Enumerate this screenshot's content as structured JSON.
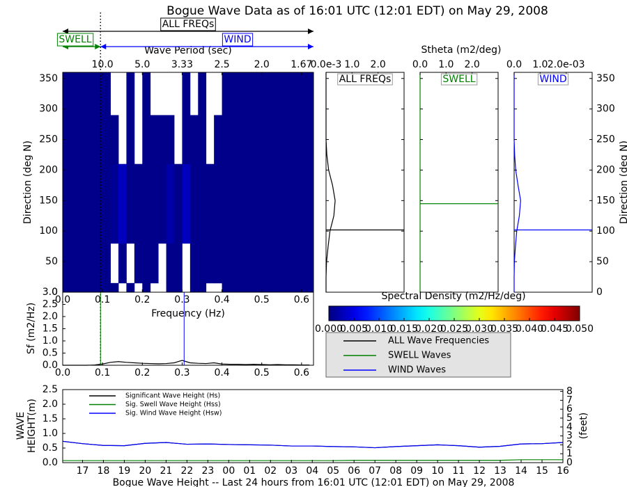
{
  "chart_data": [
    {
      "type": "heatmap",
      "title": "Bogue Wave Data as of 16:01 UTC (12:01 EDT) on May 29, 2008",
      "annotations": {
        "all": "ALL FREQs",
        "swell": "SWELL",
        "wind": "WIND"
      },
      "separation_frequency": 0.095,
      "xlabel": "Frequency (Hz)",
      "ylabel": "Direction (deg N)",
      "top_xlabel": "Wave Period (sec)",
      "xlim": [
        0,
        0.63
      ],
      "xticks": [
        {
          "value": 0,
          "label": "0.0"
        },
        {
          "value": 0.1,
          "label": "0.1"
        },
        {
          "value": 0.2,
          "label": "0.2"
        },
        {
          "value": 0.3,
          "label": "0.3"
        },
        {
          "value": 0.4,
          "label": "0.4"
        },
        {
          "value": 0.5,
          "label": "0.5"
        },
        {
          "value": 0.6,
          "label": "0.6"
        }
      ],
      "top_xticks": [
        {
          "value": 0.1,
          "label": "10.0"
        },
        {
          "value": 0.2,
          "label": "5.0"
        },
        {
          "value": 0.3,
          "label": "3.33"
        },
        {
          "value": 0.4,
          "label": "2.5"
        },
        {
          "value": 0.5,
          "label": "2.0"
        },
        {
          "value": 0.6,
          "label": "1.67"
        }
      ],
      "ylim": [
        0,
        360
      ],
      "yticks": [
        0,
        50,
        100,
        150,
        200,
        250,
        300,
        350
      ],
      "x_edges": [
        0,
        0.02,
        0.04,
        0.06,
        0.08,
        0.1,
        0.12,
        0.14,
        0.16,
        0.18,
        0.2,
        0.22,
        0.24,
        0.26,
        0.28,
        0.3,
        0.32,
        0.34,
        0.36,
        0.38,
        0.4,
        0.42,
        0.44,
        0.46,
        0.48,
        0.5,
        0.52,
        0.54,
        0.56,
        0.58,
        0.6,
        0.63
      ],
      "y_edges": [
        0,
        15,
        80,
        210,
        290,
        360
      ],
      "z": [
        [
          0.0005,
          0.0005,
          0.0005,
          0.0005,
          0.0005,
          0.0005,
          0.0005,
          null,
          0.0005,
          null,
          0.0005,
          null,
          null,
          0.0005,
          0.0005,
          null,
          0.0005,
          0.0005,
          null,
          null,
          0.0005,
          0.0005,
          0.0005,
          0.0005,
          0.0005,
          0.0005,
          0.0005,
          0.0005,
          0.0005,
          0.0005,
          0.0005
        ],
        [
          0.0005,
          0.0005,
          0.0005,
          0.0005,
          0.0005,
          0.0005,
          null,
          0.0005,
          null,
          0.0005,
          0.0005,
          0.0005,
          null,
          0.0005,
          0.0005,
          null,
          0.0005,
          0.0005,
          0.0005,
          0.0005,
          0.0005,
          0.0005,
          0.0005,
          0.0005,
          0.0005,
          0.0005,
          0.0005,
          0.0005,
          0.0005,
          0.0005,
          0.0005
        ],
        [
          0.0005,
          0.0005,
          0.0005,
          0.0005,
          0.0005,
          0.0005,
          0.001,
          0.003,
          0.0005,
          0.0005,
          0.0005,
          0.0005,
          0.0005,
          0.002,
          0.0005,
          0.003,
          0.0005,
          0.0005,
          0.0005,
          0.0005,
          0.0005,
          0.0005,
          0.0005,
          0.0005,
          0.0005,
          0.0005,
          0.0005,
          0.0005,
          0.0005,
          0.0005,
          0.0005
        ],
        [
          0.0005,
          0.0005,
          0.0005,
          0.0005,
          0.0005,
          0.0005,
          0.0005,
          null,
          0.0005,
          null,
          0.0005,
          0.0005,
          0.0005,
          0.0005,
          null,
          0.0005,
          0.0005,
          0.0005,
          null,
          0.0005,
          0.0005,
          0.0005,
          0.0005,
          0.0005,
          0.0005,
          0.0005,
          0.0005,
          0.0005,
          0.0005,
          0.0005,
          0.0005
        ],
        [
          0.0005,
          0.0005,
          0.0005,
          0.0005,
          0.0005,
          0.0005,
          null,
          null,
          0.0005,
          null,
          0.0005,
          null,
          null,
          null,
          null,
          0.0005,
          null,
          0.0005,
          null,
          null,
          0.0005,
          0.0005,
          0.0005,
          0.0005,
          0.0005,
          0.0005,
          0.0005,
          0.0005,
          0.0005,
          0.0005,
          0.0005
        ]
      ]
    },
    {
      "type": "profile",
      "label": "ALL FREQs",
      "color": "#000000",
      "xlim": [
        0,
        3.0
      ],
      "xticks": [
        {
          "value": 0,
          "label": "0.0e-3"
        },
        {
          "value": 1,
          "label": "1.0"
        },
        {
          "value": 2,
          "label": "2.0"
        }
      ],
      "ylim": [
        0,
        360
      ],
      "yticks": [
        0,
        50,
        100,
        150,
        200,
        250,
        300,
        350
      ],
      "ytick_labels": "none",
      "y": [
        0,
        25,
        50,
        75,
        100,
        125,
        150,
        175,
        200,
        225,
        250,
        300,
        360
      ],
      "values": [
        0,
        0,
        0.02,
        0.08,
        0.15,
        0.3,
        0.35,
        0.25,
        0.1,
        0.03,
        0,
        0,
        0
      ],
      "mean_direction": 102
    },
    {
      "type": "profile",
      "label": "SWELL",
      "color": "#008000",
      "xlabel": "Stheta (m2/deg)",
      "xlim": [
        0,
        3.0
      ],
      "xticks": [
        {
          "value": 0,
          "label": "0.0"
        },
        {
          "value": 1,
          "label": "1.0"
        },
        {
          "value": 2,
          "label": "2.0"
        }
      ],
      "ylim": [
        0,
        360
      ],
      "yticks": [
        0,
        50,
        100,
        150,
        200,
        250,
        300,
        350
      ],
      "ytick_labels": "none",
      "y": [
        0,
        25,
        50,
        75,
        100,
        125,
        150,
        175,
        200,
        225,
        250,
        300,
        360
      ],
      "values": [
        0,
        0,
        0,
        0,
        0,
        0,
        0,
        0,
        0,
        0,
        0,
        0,
        0
      ],
      "mean_direction": 145
    },
    {
      "type": "profile",
      "label": "WIND",
      "color": "#0000ff",
      "ylabel": "Direction (deg N)",
      "xlim": [
        0,
        3.0
      ],
      "xticks": [
        {
          "value": 0,
          "label": "0.0"
        },
        {
          "value": 1,
          "label": "1.0"
        },
        {
          "value": 2,
          "label": "2.0e-03"
        }
      ],
      "ylim": [
        0,
        360
      ],
      "yticks": [
        0,
        50,
        100,
        150,
        200,
        250,
        300,
        350
      ],
      "ytick_labels": "right",
      "y": [
        0,
        25,
        50,
        75,
        100,
        125,
        150,
        175,
        200,
        225,
        250,
        300,
        360
      ],
      "values": [
        0,
        0,
        0.01,
        0.05,
        0.1,
        0.2,
        0.25,
        0.15,
        0.06,
        0.02,
        0,
        0,
        0
      ],
      "mean_direction": 102
    },
    {
      "type": "colorbar",
      "title": "Spectral Density (m2/Hz/deg)",
      "colormap": "jet",
      "clim": [
        0,
        0.05
      ],
      "ticks": [
        {
          "value": 0,
          "label": "0.000"
        },
        {
          "value": 0.005,
          "label": "0.005"
        },
        {
          "value": 0.01,
          "label": "0.010"
        },
        {
          "value": 0.015,
          "label": "0.015"
        },
        {
          "value": 0.02,
          "label": "0.020"
        },
        {
          "value": 0.025,
          "label": "0.025"
        },
        {
          "value": 0.03,
          "label": "0.030"
        },
        {
          "value": 0.035,
          "label": "0.035"
        },
        {
          "value": 0.04,
          "label": "0.040"
        },
        {
          "value": 0.045,
          "label": "0.045"
        },
        {
          "value": 0.05,
          "label": "0.050"
        }
      ]
    },
    {
      "type": "spectrum",
      "ylabel": "Sf (m2/Hz)",
      "legend": "outside-right",
      "xlim": [
        0,
        0.63
      ],
      "xticks": [
        {
          "value": 0,
          "label": "0.0"
        },
        {
          "value": 0.1,
          "label": "0.1"
        },
        {
          "value": 0.2,
          "label": "0.2"
        },
        {
          "value": 0.3,
          "label": "0.3"
        },
        {
          "value": 0.4,
          "label": "0.4"
        },
        {
          "value": 0.5,
          "label": "0.5"
        },
        {
          "value": 0.6,
          "label": "0.6"
        }
      ],
      "ylim": [
        0,
        3.0
      ],
      "yticks": [
        {
          "value": 0,
          "label": "0.0"
        },
        {
          "value": 0.5,
          "label": "0.5"
        },
        {
          "value": 1,
          "label": "1.0"
        },
        {
          "value": 1.5,
          "label": "1.5"
        },
        {
          "value": 2,
          "label": "2.0"
        },
        {
          "value": 2.5,
          "label": "2.5"
        },
        {
          "value": 3,
          "label": "3.0"
        }
      ],
      "x": [
        0,
        0.02,
        0.04,
        0.06,
        0.08,
        0.1,
        0.12,
        0.14,
        0.16,
        0.18,
        0.2,
        0.22,
        0.24,
        0.26,
        0.28,
        0.3,
        0.32,
        0.34,
        0.36,
        0.38,
        0.4,
        0.42,
        0.44,
        0.46,
        0.48,
        0.5,
        0.52,
        0.54,
        0.56,
        0.58,
        0.6,
        0.62
      ],
      "series": [
        {
          "name": "ALL Wave Frequencies",
          "color": "#000000",
          "values": [
            0,
            0,
            0,
            0,
            0.01,
            0.05,
            0.12,
            0.15,
            0.12,
            0.1,
            0.08,
            0.07,
            0.06,
            0.07,
            0.1,
            0.2,
            0.1,
            0.08,
            0.07,
            0.1,
            0.05,
            0.04,
            0.04,
            0.03,
            0.04,
            0.03,
            0.02,
            0.03,
            0.02,
            0.02,
            0.01,
            0.01
          ]
        },
        {
          "name": "SWELL Waves",
          "color": "#008000",
          "marker_x": 0.095
        },
        {
          "name": "WIND Waves",
          "color": "#0000ff",
          "marker_x": 0.305
        }
      ]
    },
    {
      "type": "line",
      "xlabel": "Bogue Wave Height -- Last 24 hours from 16:01 UTC (12:01 EDT) on May 29, 2008",
      "ylabel": [
        "WAVE",
        "HEIGHT(m)"
      ],
      "y2label": "(feet)",
      "legend": "upper left",
      "xlim": [
        0.05,
        24
      ],
      "xticks": [
        {
          "value": 1,
          "label": "17"
        },
        {
          "value": 2,
          "label": "18"
        },
        {
          "value": 3,
          "label": "19"
        },
        {
          "value": 4,
          "label": "20"
        },
        {
          "value": 5,
          "label": "21"
        },
        {
          "value": 6,
          "label": "22"
        },
        {
          "value": 7,
          "label": "23"
        },
        {
          "value": 8,
          "label": "00"
        },
        {
          "value": 9,
          "label": "01"
        },
        {
          "value": 10,
          "label": "02"
        },
        {
          "value": 11,
          "label": "03"
        },
        {
          "value": 12,
          "label": "04"
        },
        {
          "value": 13,
          "label": "05"
        },
        {
          "value": 14,
          "label": "06"
        },
        {
          "value": 15,
          "label": "07"
        },
        {
          "value": 16,
          "label": "08"
        },
        {
          "value": 17,
          "label": "09"
        },
        {
          "value": 18,
          "label": "10"
        },
        {
          "value": 19,
          "label": "11"
        },
        {
          "value": 20,
          "label": "12"
        },
        {
          "value": 21,
          "label": "13"
        },
        {
          "value": 22,
          "label": "14"
        },
        {
          "value": 23,
          "label": "15"
        },
        {
          "value": 24,
          "label": "16"
        }
      ],
      "ylim": [
        0,
        2.5
      ],
      "yticks": [
        {
          "value": 0,
          "label": "0.0"
        },
        {
          "value": 0.5,
          "label": "0.5"
        },
        {
          "value": 1,
          "label": "1.0"
        },
        {
          "value": 1.5,
          "label": "1.5"
        },
        {
          "value": 2,
          "label": "2.0"
        },
        {
          "value": 2.5,
          "label": "2.5"
        }
      ],
      "y2lim": [
        0,
        8.2
      ],
      "y2ticks": [
        0,
        1,
        2,
        3,
        4,
        5,
        6,
        7,
        8
      ],
      "x": [
        0.05,
        1,
        2,
        3,
        4,
        5,
        6,
        7,
        8,
        9,
        10,
        11,
        12,
        13,
        14,
        15,
        16,
        17,
        18,
        19,
        20,
        21,
        22,
        23,
        24
      ],
      "series": [
        {
          "name": "Significant Wave Height (Hs)",
          "color": "#000000",
          "values": [
            0.73,
            0.65,
            0.59,
            0.58,
            0.66,
            0.69,
            0.63,
            0.64,
            0.62,
            0.61,
            0.6,
            0.57,
            0.57,
            0.55,
            0.54,
            0.51,
            0.55,
            0.58,
            0.61,
            0.58,
            0.53,
            0.56,
            0.64,
            0.65,
            0.69
          ]
        },
        {
          "name": "Sig. Swell Wave Height (Hss)",
          "color": "#008000",
          "values": [
            0.07,
            0.07,
            0.07,
            0.07,
            0.07,
            0.07,
            0.07,
            0.07,
            0.07,
            0.07,
            0.07,
            0.07,
            0.07,
            0.07,
            0.08,
            0.08,
            0.08,
            0.08,
            0.08,
            0.08,
            0.08,
            0.08,
            0.1,
            0.1,
            0.1
          ]
        },
        {
          "name": "Sig. Wind Wave Height (Hsw)",
          "color": "#0000ff",
          "values": [
            0.73,
            0.65,
            0.59,
            0.58,
            0.66,
            0.69,
            0.63,
            0.64,
            0.62,
            0.61,
            0.6,
            0.57,
            0.57,
            0.55,
            0.54,
            0.51,
            0.55,
            0.58,
            0.61,
            0.58,
            0.53,
            0.56,
            0.64,
            0.65,
            0.69
          ]
        }
      ]
    }
  ]
}
